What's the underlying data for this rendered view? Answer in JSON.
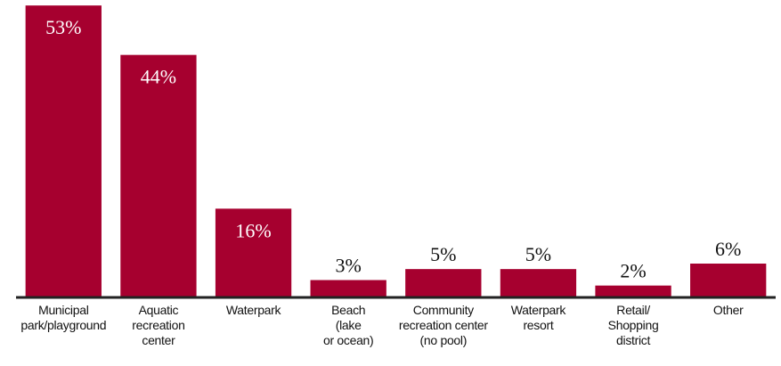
{
  "chart_data": {
    "type": "bar",
    "categories": [
      "Municipal\npark/playground",
      "Aquatic\nrecreation\ncenter",
      "Waterpark",
      "Beach\n(lake\nor ocean)",
      "Community\nrecreation center\n(no pool)",
      "Waterpark\nresort",
      "Retail/\nShopping\ndistrict",
      "Other"
    ],
    "values": [
      53,
      44,
      16,
      3,
      5,
      5,
      2,
      6
    ],
    "value_labels": [
      "53%",
      "44%",
      "16%",
      "3%",
      "5%",
      "5%",
      "2%",
      "6%"
    ],
    "color": "#a6002f",
    "ylim": [
      0,
      54
    ]
  }
}
